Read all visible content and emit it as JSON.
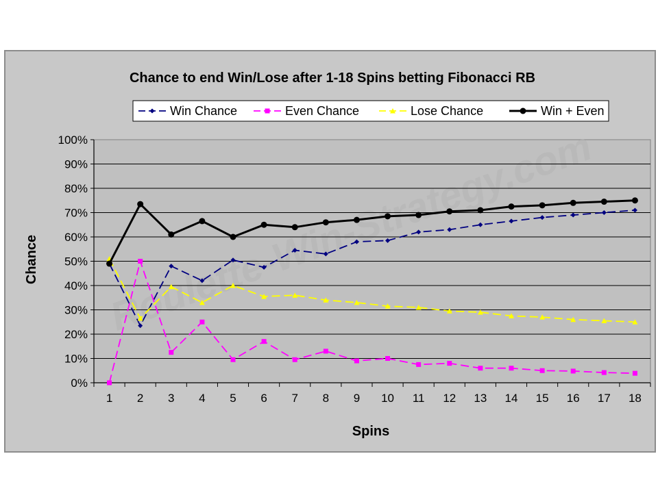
{
  "chart_data": {
    "type": "line",
    "title": "Chance to end Win/Lose after 1-18 Spins betting Fibonacci RB",
    "xlabel": "Spins",
    "ylabel": "Chance",
    "categories": [
      "1",
      "2",
      "3",
      "4",
      "5",
      "6",
      "7",
      "8",
      "9",
      "10",
      "11",
      "12",
      "13",
      "14",
      "15",
      "16",
      "17",
      "18"
    ],
    "ylim": [
      0,
      100
    ],
    "yticks": [
      "0%",
      "10%",
      "20%",
      "30%",
      "40%",
      "50%",
      "60%",
      "70%",
      "80%",
      "90%",
      "100%"
    ],
    "grid": "horizontal",
    "legend_position": "top",
    "watermark": "Roulette-Win-Strategy.com",
    "series": [
      {
        "name": "Win Chance",
        "color": "#000080",
        "style": "dashed",
        "marker": "diamond",
        "values": [
          49,
          23.5,
          48,
          42,
          50.5,
          47.5,
          54.5,
          53,
          58,
          58.5,
          62,
          63,
          65,
          66.5,
          68,
          69,
          70,
          71
        ]
      },
      {
        "name": "Even Chance",
        "color": "#ff00ff",
        "style": "dashed",
        "marker": "square",
        "values": [
          0,
          50,
          12.5,
          25,
          9.5,
          17,
          9.5,
          13,
          9,
          10,
          7.5,
          8,
          6,
          6,
          5,
          4.8,
          4.2,
          3.9
        ]
      },
      {
        "name": "Lose Chance",
        "color": "#ffff00",
        "style": "dashed",
        "marker": "triangle",
        "values": [
          51,
          26.5,
          39.5,
          33,
          40,
          35.5,
          36,
          34,
          33,
          31.5,
          31,
          29.5,
          29,
          27.5,
          27,
          26,
          25.5,
          25
        ]
      },
      {
        "name": "Win + Even",
        "color": "#000000",
        "style": "solid",
        "marker": "circle",
        "values": [
          49,
          73.5,
          61,
          66.5,
          60,
          65,
          64,
          66,
          67,
          68.5,
          69,
          70.5,
          71,
          72.5,
          73,
          74,
          74.5,
          75
        ]
      }
    ]
  }
}
